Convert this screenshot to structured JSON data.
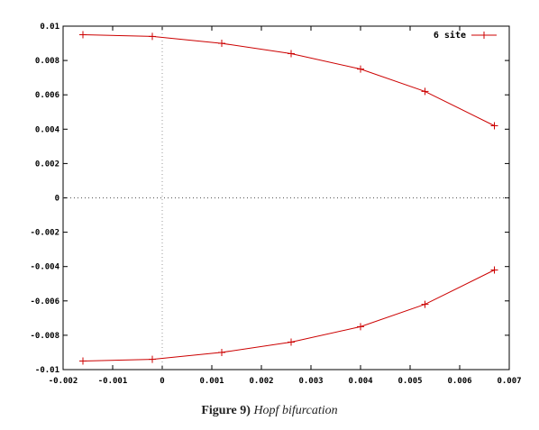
{
  "chart_data": {
    "type": "line",
    "xlim": [
      -0.002,
      0.007
    ],
    "ylim": [
      -0.01,
      0.01
    ],
    "x_ticks": [
      "-0.002",
      "-0.001",
      "0",
      "0.001",
      "0.002",
      "0.003",
      "0.004",
      "0.005",
      "0.006",
      "0.007"
    ],
    "y_ticks": [
      "0.01",
      "0.008",
      "0.006",
      "0.004",
      "0.002",
      "0",
      "-0.002",
      "-0.004",
      "-0.006",
      "-0.008",
      "-0.01"
    ],
    "x_tick_values": [
      -0.002,
      -0.001,
      0,
      0.001,
      0.002,
      0.003,
      0.004,
      0.005,
      0.006,
      0.007
    ],
    "y_tick_values": [
      0.01,
      0.008,
      0.006,
      0.004,
      0.002,
      0,
      -0.002,
      -0.004,
      -0.006,
      -0.008,
      -0.01
    ],
    "legend_position": "top-right",
    "zero_axes": "dotted",
    "color": "#cc0000",
    "series": [
      {
        "name": "6 site",
        "branches": [
          {
            "x": [
              -0.0016,
              -0.0002,
              0.0012,
              0.0026,
              0.004,
              0.0053,
              0.0067
            ],
            "y": [
              0.0095,
              0.0094,
              0.009,
              0.0084,
              0.0075,
              0.0062,
              0.0042
            ]
          },
          {
            "x": [
              -0.0016,
              -0.0002,
              0.0012,
              0.0026,
              0.004,
              0.0053,
              0.0067
            ],
            "y": [
              -0.0095,
              -0.0094,
              -0.009,
              -0.0084,
              -0.0075,
              -0.0062,
              -0.0042
            ]
          }
        ]
      }
    ]
  },
  "caption": {
    "label": "Figure 9)",
    "text": "Hopf bifurcation"
  }
}
